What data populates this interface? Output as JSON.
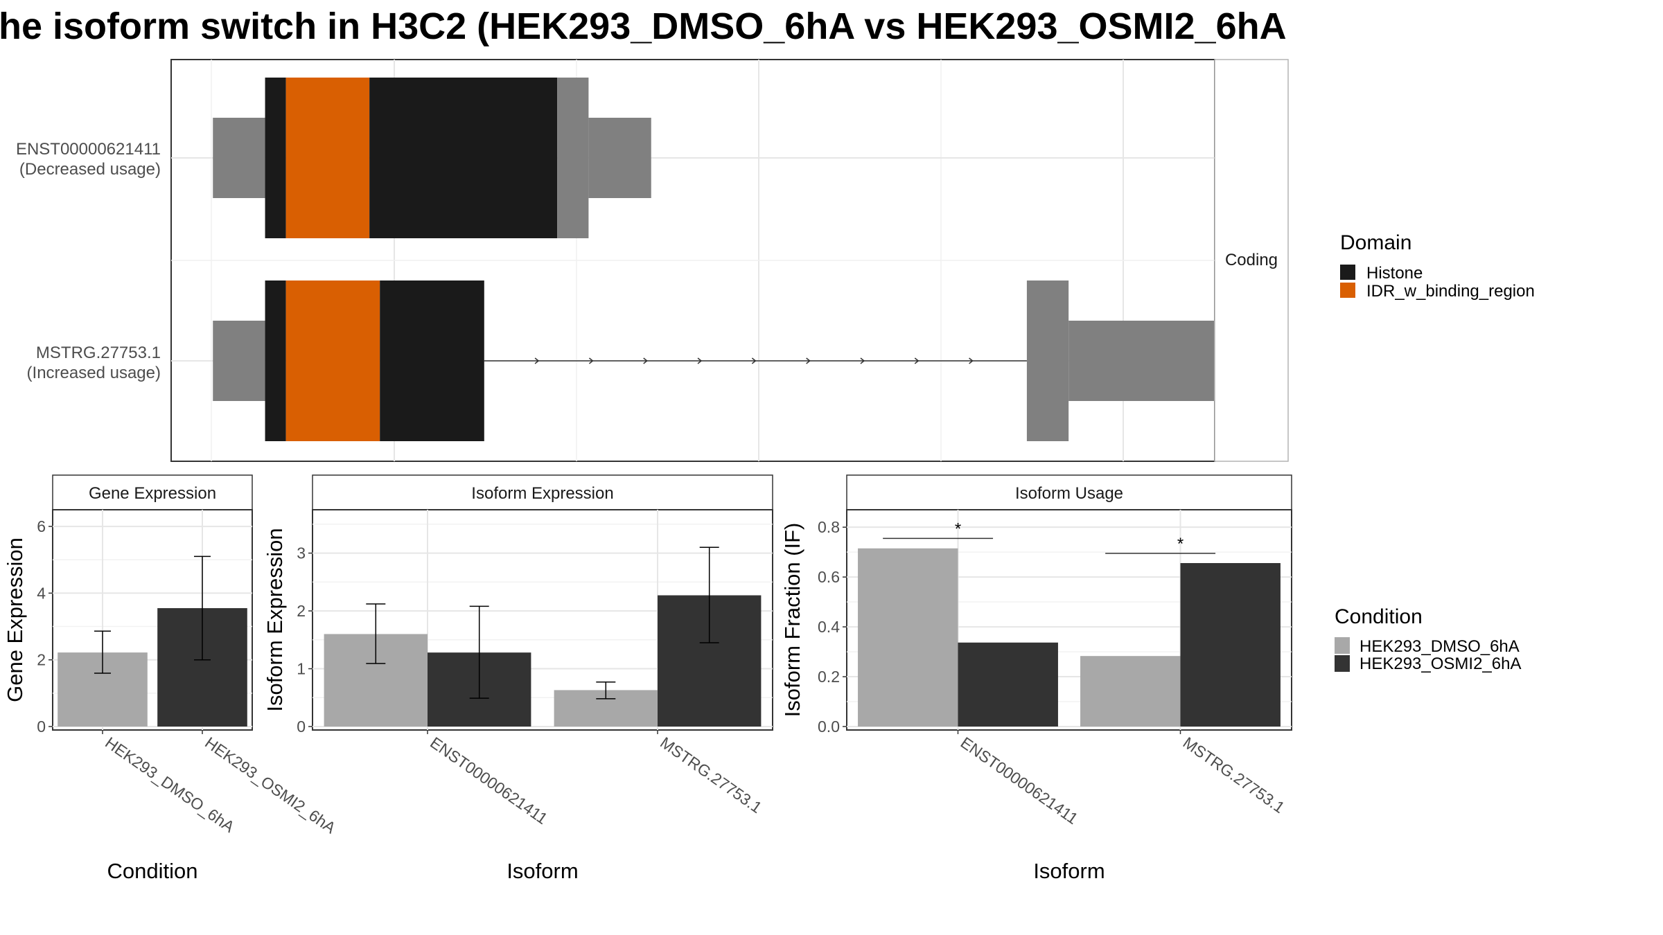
{
  "title": "he isoform switch in H3C2 (HEK293_DMSO_6hA vs HEK293_OSMI2_6hA",
  "colors": {
    "histone": "#1a1a1a",
    "idr": "#d95f02",
    "utr": "#808080",
    "dmso": "#a8a8a8",
    "osmi2": "#333333"
  },
  "legends": {
    "domain_title": "Domain",
    "domain_items": [
      {
        "label": "Histone",
        "color": "#1a1a1a"
      },
      {
        "label": "IDR_w_binding_region",
        "color": "#d95f02"
      }
    ],
    "condition_title": "Condition",
    "condition_items": [
      {
        "label": "HEK293_DMSO_6hA",
        "color": "#a8a8a8"
      },
      {
        "label": "HEK293_OSMI2_6hA",
        "color": "#333333"
      }
    ]
  },
  "chart_data": [
    {
      "type": "other",
      "panel": "transcript-structure",
      "strip_label": "Coding",
      "transcripts": [
        {
          "label_line1": "ENST00000621411",
          "label_line2": "(Decreased usage)",
          "segments": [
            {
              "kind": "utr",
              "start": 0.04,
              "end": 0.09
            },
            {
              "kind": "histone",
              "start": 0.09,
              "end": 0.11
            },
            {
              "kind": "idr",
              "start": 0.11,
              "end": 0.19
            },
            {
              "kind": "histone",
              "start": 0.19,
              "end": 0.37
            },
            {
              "kind": "utr_tall",
              "start": 0.37,
              "end": 0.4
            },
            {
              "kind": "utr",
              "start": 0.4,
              "end": 0.46
            }
          ]
        },
        {
          "label_line1": "MSTRG.27753.1",
          "label_line2": "(Increased usage)",
          "segments": [
            {
              "kind": "utr",
              "start": 0.04,
              "end": 0.09
            },
            {
              "kind": "histone",
              "start": 0.09,
              "end": 0.11
            },
            {
              "kind": "idr",
              "start": 0.11,
              "end": 0.2
            },
            {
              "kind": "histone",
              "start": 0.2,
              "end": 0.3
            },
            {
              "kind": "utr_tall",
              "start": 0.82,
              "end": 0.86
            },
            {
              "kind": "utr",
              "start": 0.86,
              "end": 1.0
            }
          ],
          "intron": {
            "start": 0.3,
            "end": 0.82
          }
        }
      ]
    },
    {
      "type": "bar",
      "panel": "gene-expression",
      "title": "Gene Expression",
      "xlabel": "Condition",
      "ylabel": "Gene Expression",
      "ylim": [
        0,
        6.5
      ],
      "yticks": [
        0,
        2,
        4,
        6
      ],
      "categories": [
        "HEK293_DMSO_6hA",
        "HEK293_OSMI2_6hA"
      ],
      "values": [
        2.22,
        3.55
      ],
      "err_low": [
        1.6,
        2.0
      ],
      "err_high": [
        2.86,
        5.1
      ]
    },
    {
      "type": "bar",
      "panel": "isoform-expression",
      "title": "Isoform Expression",
      "xlabel": "Isoform",
      "ylabel": "Isoform Expression",
      "ylim": [
        0,
        3.75
      ],
      "yticks": [
        0,
        1,
        2,
        3
      ],
      "categories": [
        "ENST00000621411",
        "MSTRG.27753.1"
      ],
      "series": [
        {
          "name": "HEK293_DMSO_6hA",
          "values": [
            1.6,
            0.63
          ],
          "err_low": [
            1.09,
            0.48
          ],
          "err_high": [
            2.12,
            0.77
          ]
        },
        {
          "name": "HEK293_OSMI2_6hA",
          "values": [
            1.28,
            2.27
          ],
          "err_low": [
            0.49,
            1.45
          ],
          "err_high": [
            2.08,
            3.1
          ]
        }
      ]
    },
    {
      "type": "bar",
      "panel": "isoform-usage",
      "title": "Isoform Usage",
      "xlabel": "Isoform",
      "ylabel": "Isoform Fraction (IF)",
      "ylim": [
        0,
        0.87
      ],
      "yticks": [
        0.0,
        0.2,
        0.4,
        0.6,
        0.8
      ],
      "ytick_labels": [
        "0.0",
        "0.2",
        "0.4",
        "0.6",
        "0.8"
      ],
      "categories": [
        "ENST00000621411",
        "MSTRG.27753.1"
      ],
      "series": [
        {
          "name": "HEK293_DMSO_6hA",
          "values": [
            0.715,
            0.283
          ]
        },
        {
          "name": "HEK293_OSMI2_6hA",
          "values": [
            0.337,
            0.656
          ]
        }
      ],
      "significance": [
        {
          "label": "*",
          "y": 0.755
        },
        {
          "label": "*",
          "y": 0.695
        }
      ]
    }
  ]
}
